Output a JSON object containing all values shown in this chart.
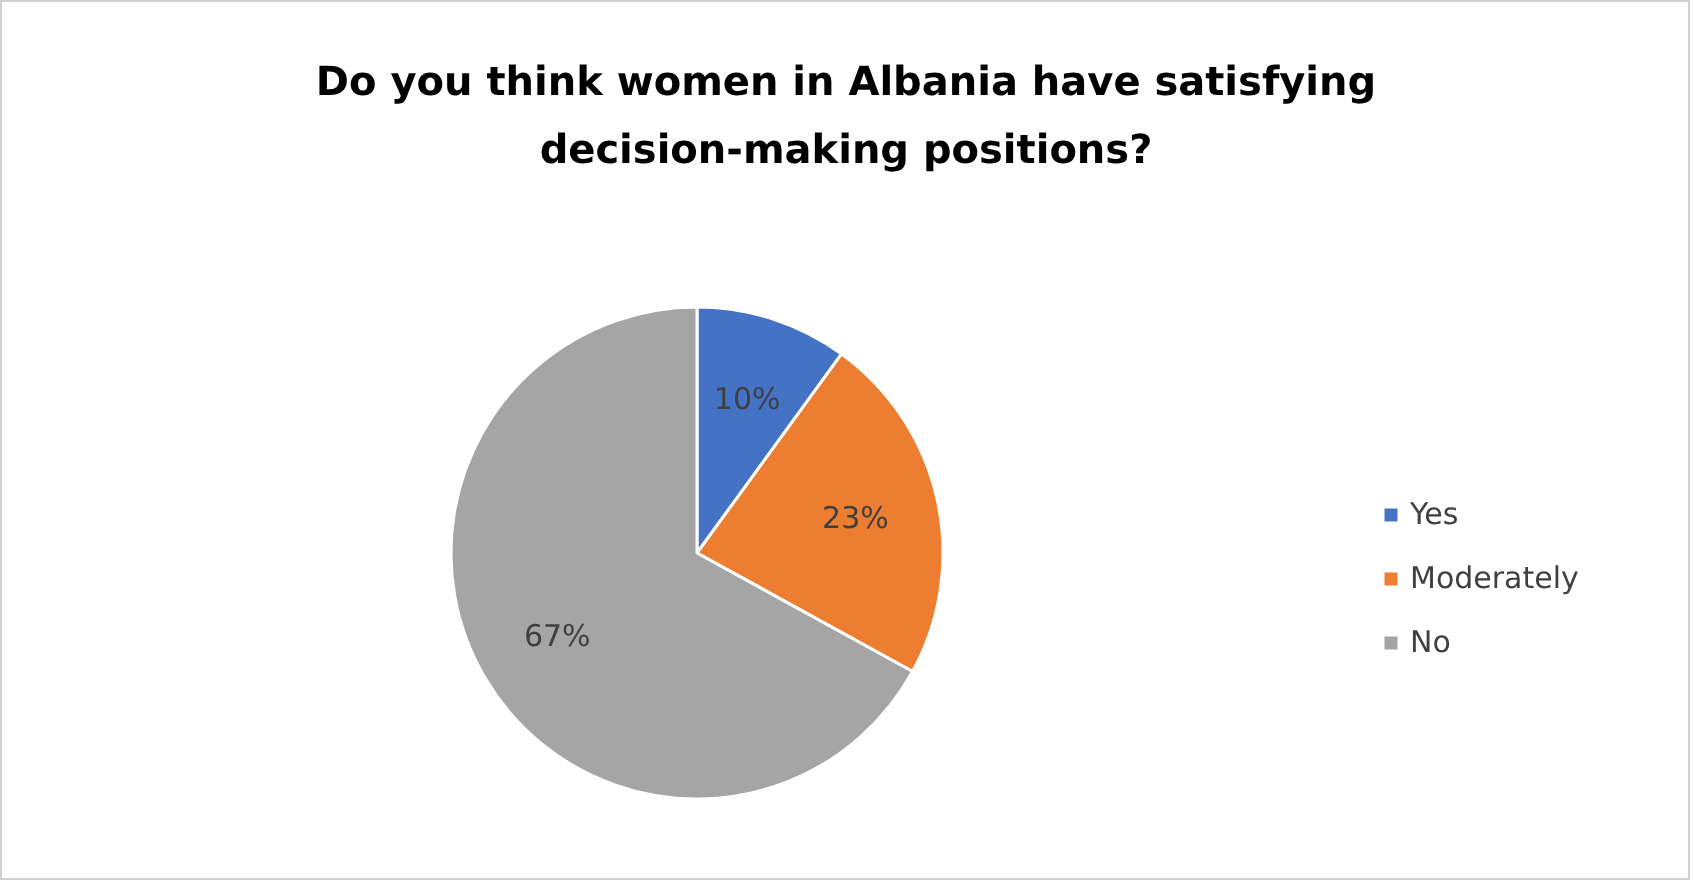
{
  "chart_data": {
    "type": "pie",
    "title": "Do you think women in Albania have satisfying decision-making positions?",
    "categories": [
      "Yes",
      "Moderately",
      "No"
    ],
    "values": [
      10,
      23,
      67
    ],
    "colors": [
      "#4472c4",
      "#ed7d31",
      "#a5a5a5"
    ],
    "value_labels": [
      "10%",
      "23%",
      "67%"
    ],
    "legend": "right"
  }
}
